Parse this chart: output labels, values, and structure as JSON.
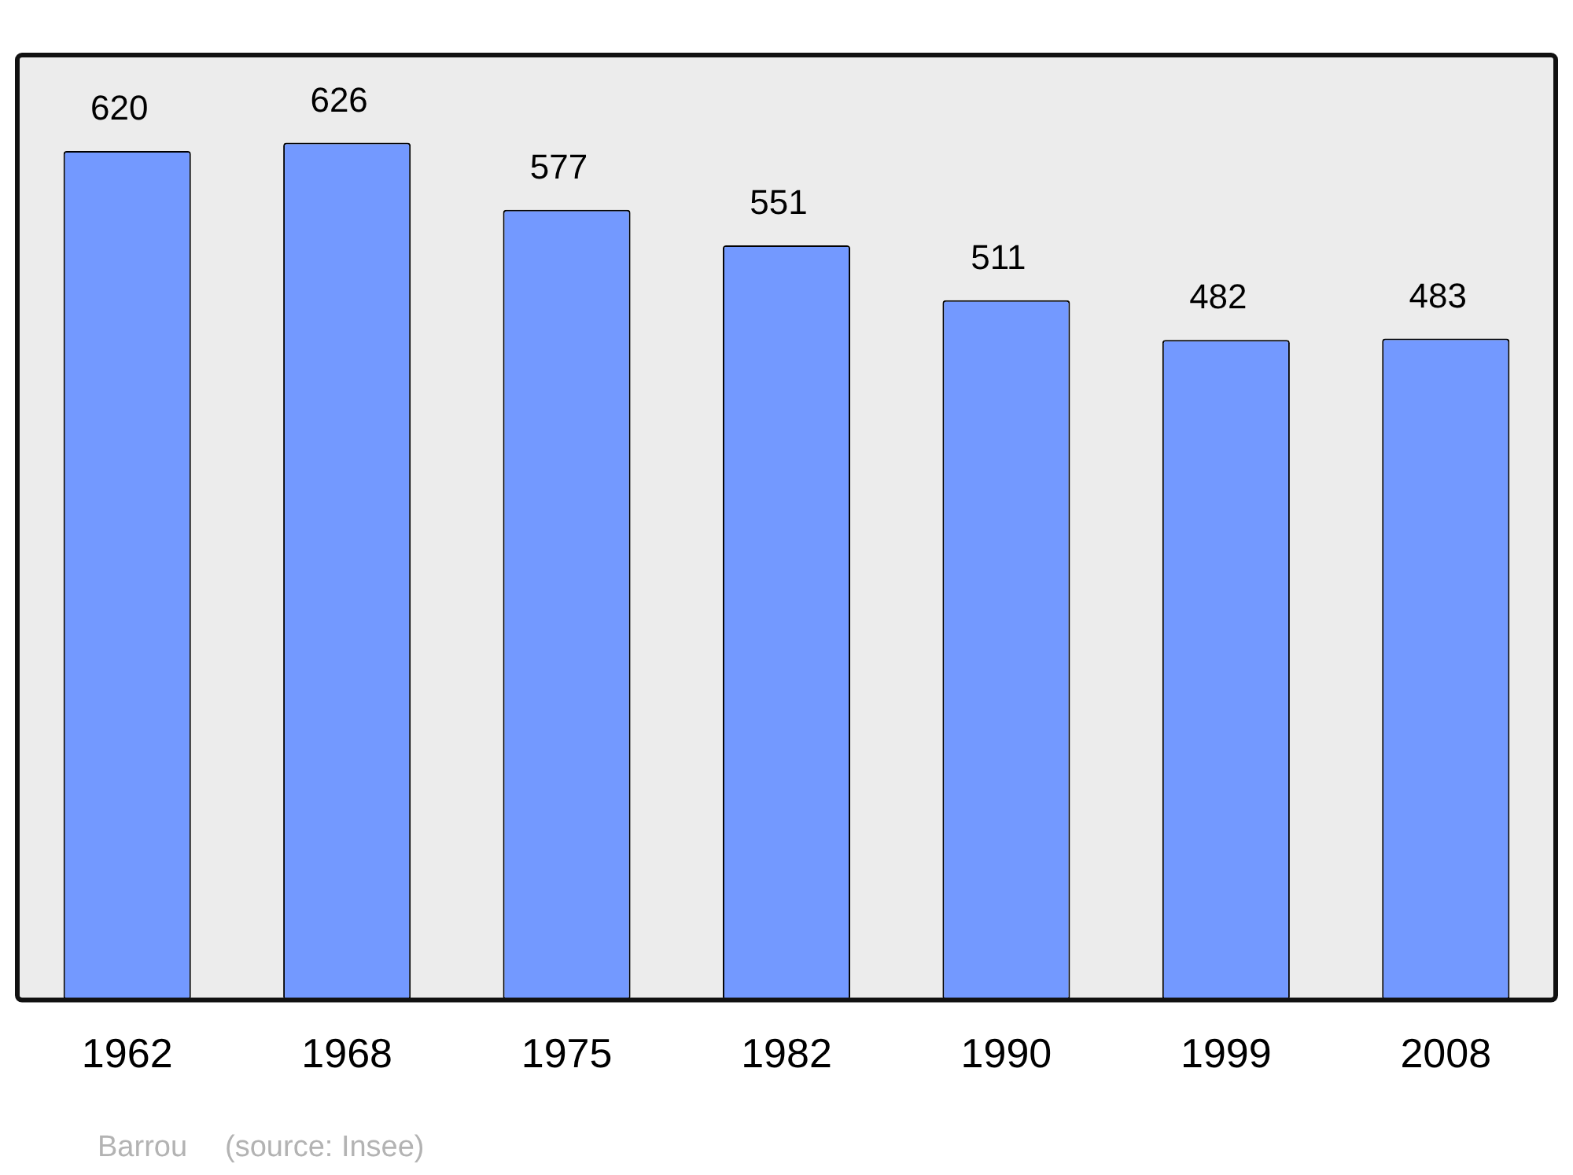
{
  "chart_data": {
    "type": "bar",
    "categories": [
      "1962",
      "1968",
      "1975",
      "1982",
      "1990",
      "1999",
      "2008"
    ],
    "values": [
      620,
      626,
      577,
      551,
      511,
      482,
      483
    ],
    "color": "#7399ff",
    "ylim": [
      0,
      690
    ],
    "tick_labels": "x",
    "grid": false,
    "legend": false,
    "data_labels": true,
    "annotations": [
      "Barrou",
      "(source: Insee)"
    ]
  }
}
